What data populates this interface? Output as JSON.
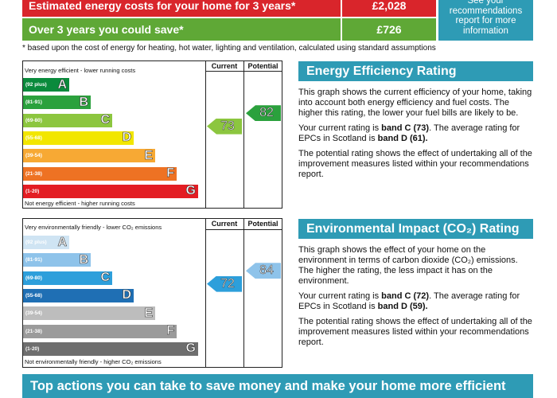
{
  "costs": {
    "estimated_label": "Estimated energy costs for your home for 3 years*",
    "estimated_value": "£2,028",
    "save_label": "Over 3 years you could save*",
    "save_value": "£726",
    "side_note": "See your recommendations report for more information",
    "footnote": "* based upon the cost of energy for heating, hot water, lighting and ventilation, calculated using standard assumptions"
  },
  "energy_chart": {
    "top_caption": "Very energy efficient - lower running costs",
    "bottom_caption": "Not energy efficient - higher running costs",
    "col_current": "Current",
    "col_potential": "Potential",
    "bands": [
      {
        "range": "(92 plus)",
        "letter": "A",
        "color": "#0a8a3c"
      },
      {
        "range": "(81-91)",
        "letter": "B",
        "color": "#2ba13d"
      },
      {
        "range": "(69-80)",
        "letter": "C",
        "color": "#8cc63f"
      },
      {
        "range": "(55-68)",
        "letter": "D",
        "color": "#f2e600"
      },
      {
        "range": "(39-54)",
        "letter": "E",
        "color": "#f7a934"
      },
      {
        "range": "(21-38)",
        "letter": "F",
        "color": "#ee7223"
      },
      {
        "range": "(1-20)",
        "letter": "G",
        "color": "#e31d23"
      }
    ],
    "current": {
      "value": "73",
      "band_index": 2,
      "color": "#8cc63f"
    },
    "potential": {
      "value": "82",
      "band_index": 1,
      "color": "#2ba13d"
    }
  },
  "env_chart": {
    "top_caption": "Very environmentally friendly - lower CO₂ emissions",
    "bottom_caption": "Not environmentally friendly - higher CO₂ emissions",
    "col_current": "Current",
    "col_potential": "Potential",
    "bands": [
      {
        "range": "(92 plus)",
        "letter": "A",
        "color": "#cfe4f3"
      },
      {
        "range": "(81-91)",
        "letter": "B",
        "color": "#8ec3ea"
      },
      {
        "range": "(69-80)",
        "letter": "C",
        "color": "#2d9fdb"
      },
      {
        "range": "(55-68)",
        "letter": "D",
        "color": "#1f6fb4"
      },
      {
        "range": "(39-54)",
        "letter": "E",
        "color": "#bdbdbd"
      },
      {
        "range": "(21-38)",
        "letter": "F",
        "color": "#9b9b9b"
      },
      {
        "range": "(1-20)",
        "letter": "G",
        "color": "#6e6e6e"
      }
    ],
    "current": {
      "value": "72",
      "band_index": 2,
      "color": "#2d9fdb"
    },
    "potential": {
      "value": "84",
      "band_index": 1,
      "color": "#8ec3ea"
    }
  },
  "energy_panel": {
    "title": "Energy Efficiency Rating",
    "p1": "This graph shows the current efficiency of your home, taking into account both energy efficiency and fuel costs. The higher this rating, the lower your fuel bills are likely to be.",
    "p2_pre": "Your current rating is ",
    "p2_bold1": "band C (73)",
    "p2_mid": ". The average rating for EPCs in Scotland is ",
    "p2_bold2": "band D (61).",
    "p3": "The potential rating shows the effect of undertaking all of the improvement measures listed within your recommendations report."
  },
  "env_panel": {
    "title": "Environmental Impact (CO₂) Rating",
    "p1": "This graph shows the effect of your home on the environment in terms of carbon dioxide (CO₂) emissions. The higher the rating, the less impact it has on the environment.",
    "p2_pre": "Your current rating is ",
    "p2_bold1": "band C (72)",
    "p2_mid": ". The average rating for EPCs in Scotland is ",
    "p2_bold2": "band D (59).",
    "p3": "The potential rating shows the effect of undertaking all of the improvement measures listed within your recommendations report."
  },
  "bottom_banner": "Top actions you can take to save money and make your home more efficient",
  "colors": {
    "accent": "#2e9bb5",
    "red": "#d9252b",
    "green": "#5fa836"
  }
}
